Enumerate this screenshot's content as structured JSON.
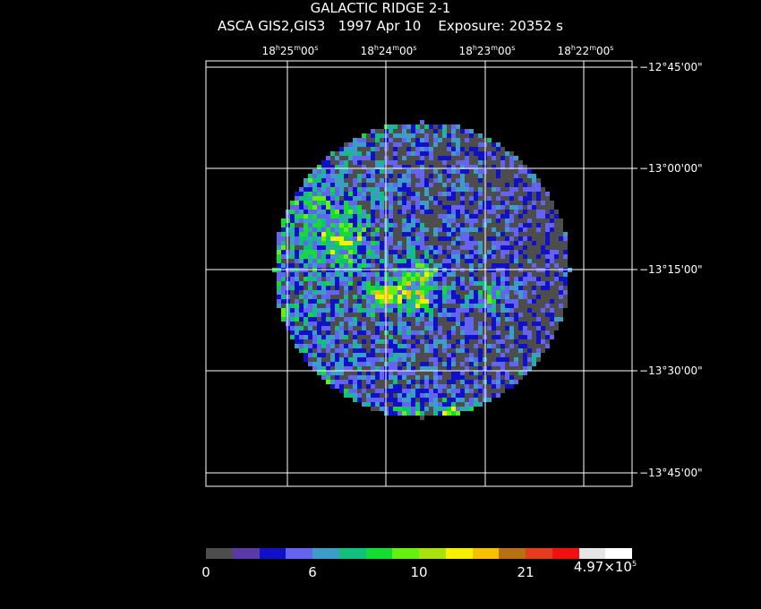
{
  "header": {
    "title": "GALACTIC RIDGE 2-1",
    "subtitle": "ASCA GIS2,GIS3   1997 Apr 10    Exposure: 20352 s"
  },
  "ra_axis": {
    "labels": [
      {
        "h": "18",
        "m": "25",
        "s": "00"
      },
      {
        "h": "18",
        "m": "24",
        "s": "00"
      },
      {
        "h": "18",
        "m": "23",
        "s": "00"
      },
      {
        "h": "18",
        "m": "22",
        "s": "00"
      }
    ]
  },
  "dec_axis": {
    "labels": [
      "−12°45'00\"",
      "−13°00'00\"",
      "−13°15'00\"",
      "−13°30'00\"",
      "−13°45'00\""
    ]
  },
  "colorbar": {
    "colors": [
      "#4d4d4d",
      "#5a3aa8",
      "#1010c8",
      "#6464f0",
      "#3c9ec8",
      "#10c07c",
      "#14dc32",
      "#66f010",
      "#a8e010",
      "#f6f000",
      "#f6c000",
      "#b87010",
      "#e43c1c",
      "#f01010",
      "#e6e6e6",
      "#ffffff"
    ],
    "labels": [
      "0",
      "6",
      "10",
      "21"
    ],
    "max_label": "4.97×10",
    "max_exp": "5"
  },
  "image": {
    "description_palette": [
      "#4d4d4d",
      "#1010c8",
      "#6464f0",
      "#3c9ec8",
      "#10c07c",
      "#14dc32",
      "#66f010",
      "#f6f000",
      "#f6c000"
    ]
  }
}
